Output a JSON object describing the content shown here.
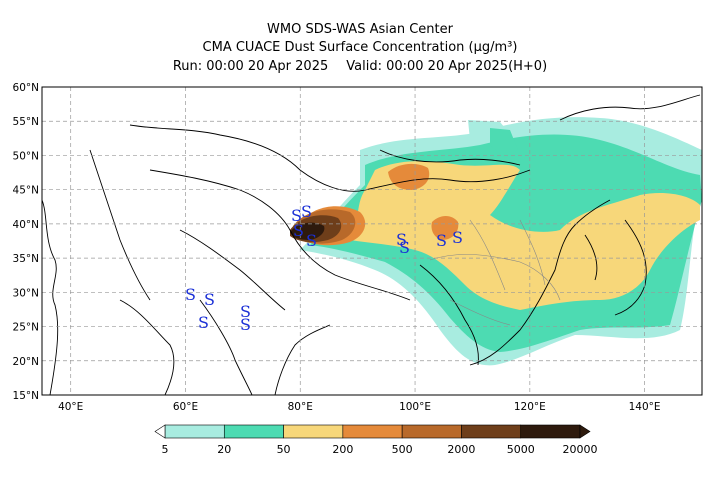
{
  "title": {
    "line1": "WMO SDS-WAS Asian Center",
    "line2": "CMA CUACE Dust Surface Concentration (µg/m³)",
    "run": "Run: 00:00 20 Apr 2025",
    "valid": "Valid: 00:00 20 Apr 2025(H+0)"
  },
  "map": {
    "lon_range": [
      35,
      150
    ],
    "lat_range": [
      15,
      60
    ],
    "lat_ticks": [
      "15°N",
      "20°N",
      "25°N",
      "30°N",
      "35°N",
      "40°N",
      "45°N",
      "50°N",
      "55°N",
      "60°N"
    ],
    "lon_ticks": [
      "40°E",
      "60°E",
      "80°E",
      "100°E",
      "120°E",
      "140°E"
    ],
    "gridlines": "dashed",
    "storm_symbol": "S"
  },
  "colorbar": {
    "levels": [
      "5",
      "20",
      "50",
      "200",
      "500",
      "2000",
      "5000",
      "20000"
    ],
    "colors": [
      "#a8ece0",
      "#4ddbb2",
      "#f7d77a",
      "#e58a3a",
      "#b8692a",
      "#6e3e1a",
      "#2e1a0d"
    ]
  }
}
